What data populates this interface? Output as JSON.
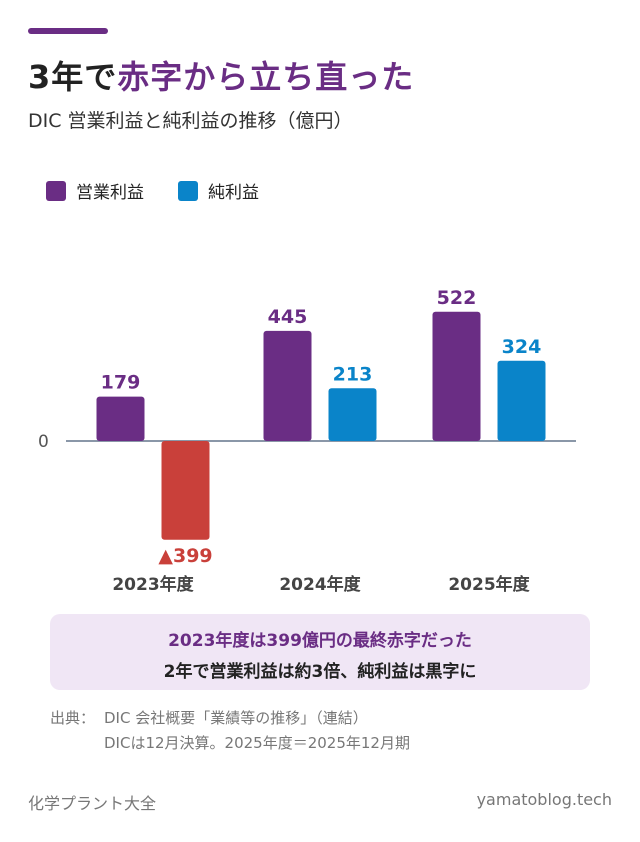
{
  "title": {
    "prefix": "3年で",
    "highlight": "赤字から立ち直った"
  },
  "subtitle": "DIC 営業利益と純利益の推移（億円）",
  "colors": {
    "accent": "#6a2d84",
    "operating": "#6a2d84",
    "net": "#0a84c9",
    "negative": "#c9403a",
    "axis": "#8a97a8"
  },
  "chart_data": {
    "type": "bar",
    "categories": [
      "2023年度",
      "2024年度",
      "2025年度"
    ],
    "series": [
      {
        "name": "営業利益",
        "values": [
          179,
          445,
          522
        ],
        "labels": [
          "179",
          "445",
          "522"
        ]
      },
      {
        "name": "純利益",
        "values": [
          -399,
          213,
          324
        ],
        "labels": [
          "▲399",
          "213",
          "324"
        ]
      }
    ],
    "zero_label": "0",
    "legend": "top-left",
    "grid": false
  },
  "note": {
    "line1": "2023年度は399億円の最終赤字だった",
    "line2": "2年で営業利益は約3倍、純利益は黒字に"
  },
  "source": {
    "label": "出典：",
    "line1": "DIC 会社概要「業績等の推移」（連結）",
    "line2": "DICは12月決算。2025年度＝2025年12月期"
  },
  "footer": {
    "left": "化学プラント大全",
    "right": "yamatoblog.tech"
  }
}
